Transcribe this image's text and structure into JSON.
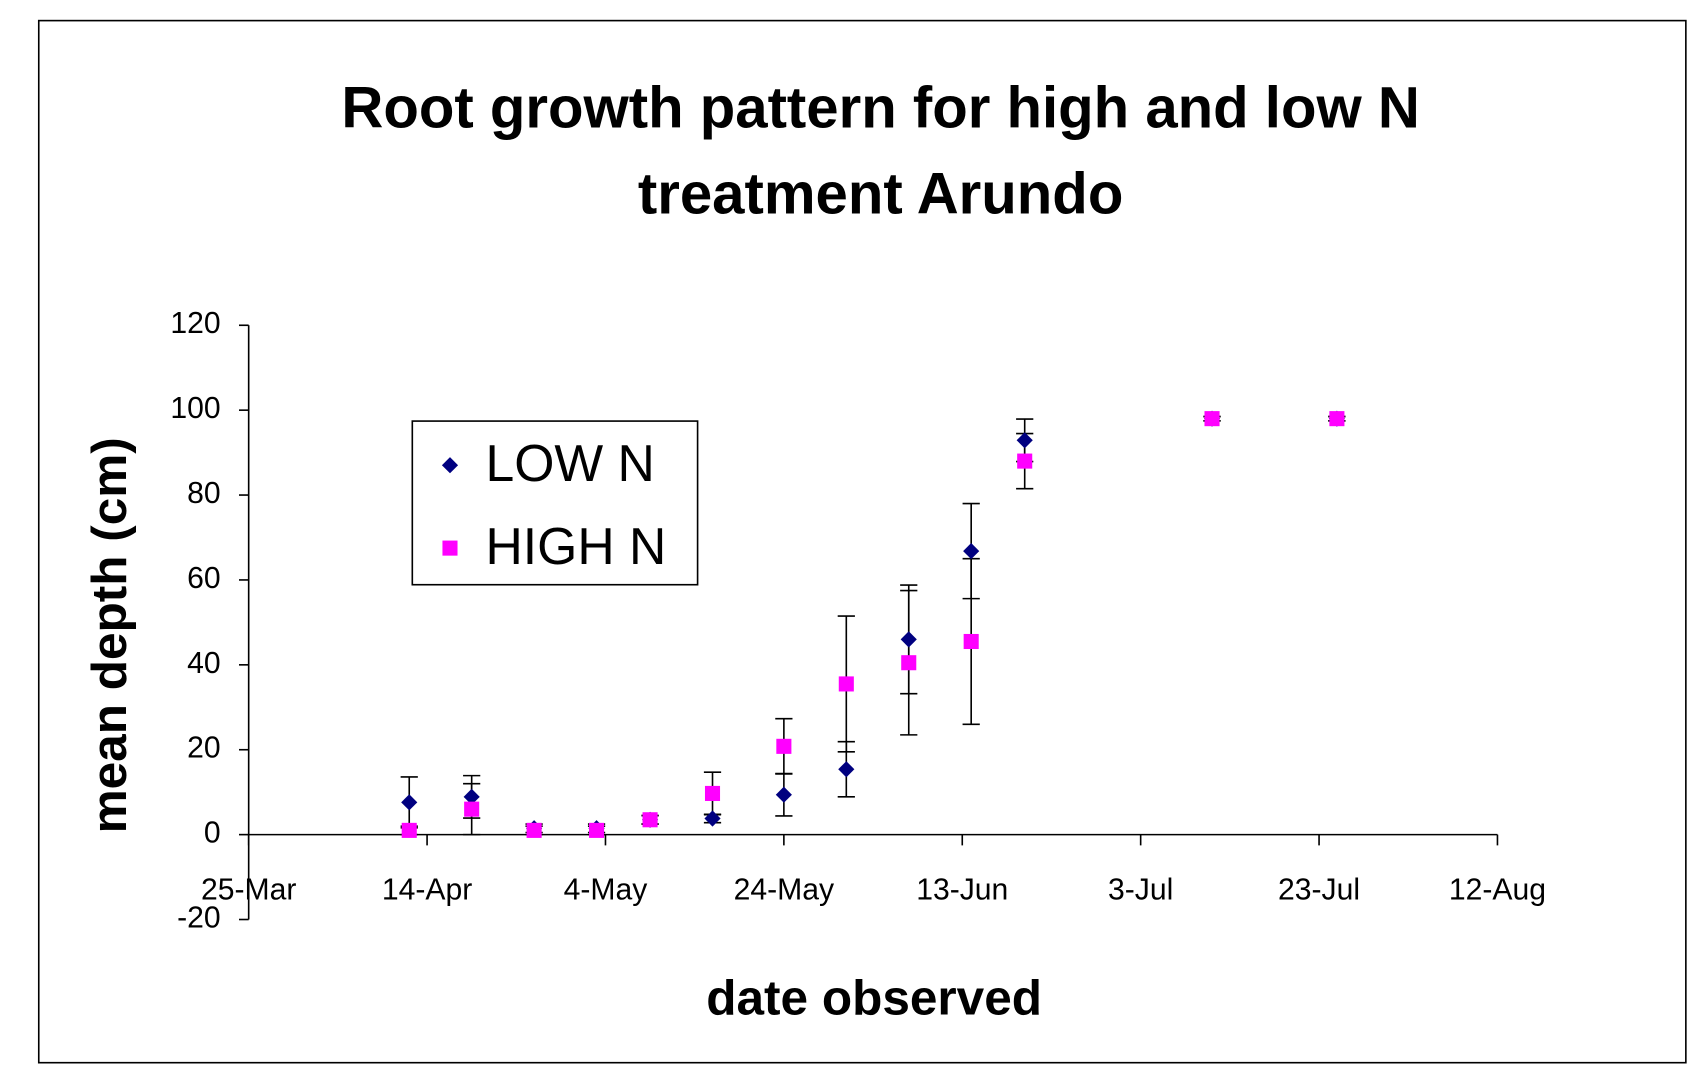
{
  "chart_data": {
    "type": "scatter",
    "title": [
      "Root growth pattern for high and low N",
      "treatment Arundo"
    ],
    "xlabel": "date observed",
    "ylabel": "mean depth (cm)",
    "xlim": [
      84,
      224
    ],
    "xticks": [
      {
        "value": 84,
        "label": "25-Mar"
      },
      {
        "value": 104,
        "label": "14-Apr"
      },
      {
        "value": 124,
        "label": "4-May"
      },
      {
        "value": 144,
        "label": "24-May"
      },
      {
        "value": 164,
        "label": "13-Jun"
      },
      {
        "value": 184,
        "label": "3-Jul"
      },
      {
        "value": 204,
        "label": "23-Jul"
      },
      {
        "value": 224,
        "label": "12-Aug"
      }
    ],
    "ylim": [
      -20,
      120
    ],
    "yticks": [
      -20,
      0,
      20,
      40,
      60,
      80,
      100,
      120
    ],
    "legend": "upper left",
    "series": [
      {
        "name": "LOW N",
        "color": "#000080",
        "marker": "diamond",
        "x": [
          102,
          109,
          116,
          123,
          129,
          136,
          144,
          151,
          158,
          165,
          171,
          192,
          206
        ],
        "values": [
          7.6,
          8.9,
          1.5,
          1.5,
          3.5,
          3.8,
          9.4,
          15.4,
          46,
          66.8,
          92.9,
          98,
          98
        ],
        "errors": [
          6,
          5,
          1,
          1,
          1,
          1,
          5,
          6.5,
          12.8,
          11.2,
          5,
          0.5,
          0.5
        ]
      },
      {
        "name": "HIGH N",
        "color": "#ff00ff",
        "marker": "square",
        "x": [
          102,
          109,
          116,
          123,
          129,
          136,
          144,
          151,
          158,
          165,
          171,
          192,
          206
        ],
        "values": [
          1,
          6,
          1,
          1,
          3.5,
          9.7,
          20.8,
          35.5,
          40.5,
          45.5,
          88,
          98,
          98
        ],
        "errors": [
          1,
          6,
          1,
          1,
          1,
          5,
          6.5,
          16,
          17,
          19.5,
          6.5,
          0.5,
          0.5
        ]
      }
    ]
  }
}
